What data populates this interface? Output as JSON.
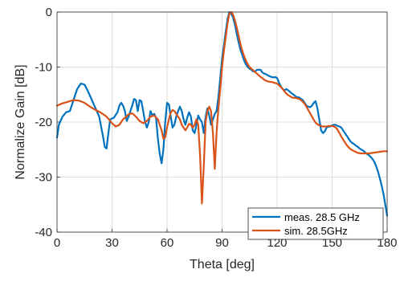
{
  "chart_data": {
    "type": "line",
    "xlabel": "Theta [deg]",
    "ylabel": "Normalize Gain [dB]",
    "xlim": [
      0,
      180
    ],
    "ylim": [
      -40,
      0
    ],
    "xticks": [
      0,
      30,
      60,
      90,
      120,
      150,
      180
    ],
    "yticks": [
      -40,
      -30,
      -20,
      -10,
      0
    ],
    "grid": true,
    "legend_position": "bottom-right",
    "series": [
      {
        "name": "meas. 28.5 GHz",
        "color": "#0072BD",
        "points": [
          [
            0,
            -22.8
          ],
          [
            1,
            -20.5
          ],
          [
            3,
            -19
          ],
          [
            5,
            -18.2
          ],
          [
            7,
            -18
          ],
          [
            9,
            -16
          ],
          [
            11,
            -14
          ],
          [
            13,
            -13
          ],
          [
            15,
            -13.2
          ],
          [
            17,
            -14.5
          ],
          [
            19,
            -16
          ],
          [
            21,
            -17.5
          ],
          [
            23,
            -19
          ],
          [
            25,
            -22.5
          ],
          [
            26,
            -24.5
          ],
          [
            27,
            -24.8
          ],
          [
            28,
            -22
          ],
          [
            29,
            -19.5
          ],
          [
            31,
            -19.2
          ],
          [
            33,
            -18.2
          ],
          [
            34,
            -17
          ],
          [
            35,
            -16.5
          ],
          [
            36,
            -17
          ],
          [
            37,
            -18
          ],
          [
            38,
            -19.8
          ],
          [
            39,
            -19
          ],
          [
            41,
            -17
          ],
          [
            42,
            -15.8
          ],
          [
            43,
            -16
          ],
          [
            44,
            -18
          ],
          [
            45,
            -16
          ],
          [
            46,
            -16.2
          ],
          [
            47,
            -18
          ],
          [
            48,
            -20
          ],
          [
            49,
            -21
          ],
          [
            50,
            -20
          ],
          [
            51,
            -18
          ],
          [
            52,
            -18.8
          ],
          [
            53,
            -18.5
          ],
          [
            54,
            -19.2
          ],
          [
            55,
            -23
          ],
          [
            56,
            -25.8
          ],
          [
            57,
            -27.5
          ],
          [
            58,
            -25
          ],
          [
            59,
            -20
          ],
          [
            60,
            -16.5
          ],
          [
            61,
            -16.8
          ],
          [
            62,
            -19
          ],
          [
            63,
            -21
          ],
          [
            64,
            -20.5
          ],
          [
            65,
            -19
          ],
          [
            66,
            -18
          ],
          [
            67,
            -17.2
          ],
          [
            68,
            -18
          ],
          [
            69,
            -19.5
          ],
          [
            70,
            -20.5
          ],
          [
            71,
            -19.2
          ],
          [
            72,
            -18.2
          ],
          [
            73,
            -19
          ],
          [
            74,
            -21.5
          ],
          [
            75,
            -22
          ],
          [
            76,
            -20.5
          ],
          [
            77,
            -18.8
          ],
          [
            78,
            -19.5
          ],
          [
            79,
            -20
          ],
          [
            80,
            -22
          ],
          [
            81,
            -19
          ],
          [
            82,
            -17.5
          ],
          [
            83,
            -18.8
          ],
          [
            84,
            -20.5
          ],
          [
            85,
            -19.5
          ],
          [
            86,
            -18.5
          ],
          [
            87,
            -18
          ],
          [
            88,
            -15.5
          ],
          [
            89,
            -12
          ],
          [
            90,
            -8.5
          ],
          [
            91,
            -6
          ],
          [
            92,
            -3.5
          ],
          [
            93,
            -1.2
          ],
          [
            94,
            0
          ],
          [
            95,
            -0.3
          ],
          [
            96,
            -1
          ],
          [
            97,
            -2.3
          ],
          [
            98,
            -4
          ],
          [
            99,
            -5.5
          ],
          [
            100,
            -6.8
          ],
          [
            101,
            -7.8
          ],
          [
            102,
            -8.8
          ],
          [
            103,
            -9.5
          ],
          [
            104,
            -10
          ],
          [
            105,
            -10.3
          ],
          [
            106,
            -10.5
          ],
          [
            107,
            -10.8
          ],
          [
            108,
            -10.8
          ],
          [
            109,
            -10.5
          ],
          [
            110,
            -10.5
          ],
          [
            111,
            -10.5
          ],
          [
            112,
            -11
          ],
          [
            113,
            -11.2
          ],
          [
            114,
            -11.3
          ],
          [
            115,
            -11.5
          ],
          [
            116,
            -11.7
          ],
          [
            117,
            -11.8
          ],
          [
            118,
            -11.9
          ],
          [
            119,
            -11.8
          ],
          [
            120,
            -12
          ],
          [
            121,
            -12.8
          ],
          [
            122,
            -13.5
          ],
          [
            123,
            -14
          ],
          [
            124,
            -14.2
          ],
          [
            125,
            -14
          ],
          [
            126,
            -14.2
          ],
          [
            127,
            -14.5
          ],
          [
            128,
            -14.8
          ],
          [
            129,
            -15
          ],
          [
            130,
            -15.3
          ],
          [
            131,
            -15.5
          ],
          [
            132,
            -15.5
          ],
          [
            133,
            -15.8
          ],
          [
            134,
            -16
          ],
          [
            135,
            -16.5
          ],
          [
            136,
            -17
          ],
          [
            137,
            -17.2
          ],
          [
            138,
            -17.3
          ],
          [
            139,
            -17
          ],
          [
            140,
            -16.5
          ],
          [
            141,
            -16.2
          ],
          [
            142,
            -17.5
          ],
          [
            143,
            -19.5
          ],
          [
            144,
            -21.5
          ],
          [
            145,
            -22
          ],
          [
            146,
            -21.7
          ],
          [
            147,
            -21
          ],
          [
            148,
            -20.8
          ],
          [
            149,
            -20.8
          ],
          [
            150,
            -20.6
          ],
          [
            151,
            -20.5
          ],
          [
            152,
            -20.5
          ],
          [
            153,
            -20.7
          ],
          [
            154,
            -20.8
          ],
          [
            155,
            -21
          ],
          [
            156,
            -21.5
          ],
          [
            157,
            -22
          ],
          [
            158,
            -22.5
          ],
          [
            159,
            -23
          ],
          [
            160,
            -23.5
          ],
          [
            161,
            -23.8
          ],
          [
            162,
            -24
          ],
          [
            163,
            -24.3
          ],
          [
            164,
            -24.5
          ],
          [
            165,
            -24.8
          ],
          [
            166,
            -25
          ],
          [
            167,
            -25.2
          ],
          [
            168,
            -25.5
          ],
          [
            169,
            -25.8
          ],
          [
            170,
            -26
          ],
          [
            171,
            -26.3
          ],
          [
            172,
            -26.7
          ],
          [
            173,
            -27.2
          ],
          [
            174,
            -28
          ],
          [
            175,
            -29
          ],
          [
            176,
            -30.2
          ],
          [
            177,
            -31.5
          ],
          [
            178,
            -33
          ],
          [
            179,
            -35
          ],
          [
            180,
            -37
          ]
        ]
      },
      {
        "name": "sim. 28.5GHz",
        "color": "#D95319",
        "points": [
          [
            0,
            -17
          ],
          [
            3,
            -16.6
          ],
          [
            6,
            -16.3
          ],
          [
            9,
            -16
          ],
          [
            12,
            -16.1
          ],
          [
            15,
            -16.5
          ],
          [
            18,
            -17.2
          ],
          [
            21,
            -17.8
          ],
          [
            24,
            -18.3
          ],
          [
            27,
            -19
          ],
          [
            30,
            -20.2
          ],
          [
            32,
            -20.8
          ],
          [
            34,
            -20.5
          ],
          [
            36,
            -19.5
          ],
          [
            39,
            -18.6
          ],
          [
            41,
            -18.4
          ],
          [
            43,
            -19
          ],
          [
            45,
            -19.8
          ],
          [
            47,
            -20.2
          ],
          [
            49,
            -19.8
          ],
          [
            51,
            -19
          ],
          [
            53,
            -18.8
          ],
          [
            55,
            -19.5
          ],
          [
            57,
            -21.5
          ],
          [
            58,
            -23
          ],
          [
            59,
            -22.8
          ],
          [
            60,
            -21
          ],
          [
            61,
            -19.5
          ],
          [
            62,
            -18.3
          ],
          [
            63,
            -17.8
          ],
          [
            64,
            -18
          ],
          [
            65,
            -18.5
          ],
          [
            66,
            -19
          ],
          [
            67,
            -19.5
          ],
          [
            68,
            -20.5
          ],
          [
            70,
            -21.5
          ],
          [
            71,
            -21
          ],
          [
            72,
            -20.3
          ],
          [
            73,
            -20.5
          ],
          [
            74,
            -21
          ],
          [
            75,
            -20.5
          ],
          [
            76,
            -19.5
          ],
          [
            77,
            -20.5
          ],
          [
            78,
            -26
          ],
          [
            79,
            -34.8
          ],
          [
            80,
            -28
          ],
          [
            81,
            -20
          ],
          [
            82,
            -18
          ],
          [
            83,
            -17.2
          ],
          [
            84,
            -18
          ],
          [
            85,
            -22
          ],
          [
            86,
            -28.5
          ],
          [
            87,
            -22
          ],
          [
            88,
            -17.5
          ],
          [
            89,
            -14
          ],
          [
            90,
            -10
          ],
          [
            91,
            -7
          ],
          [
            92,
            -4.5
          ],
          [
            93,
            -2
          ],
          [
            94,
            -0.3
          ],
          [
            95,
            0
          ],
          [
            96,
            -0.5
          ],
          [
            97,
            -1.5
          ],
          [
            98,
            -2.8
          ],
          [
            99,
            -4.3
          ],
          [
            100,
            -5.8
          ],
          [
            101,
            -7
          ],
          [
            102,
            -8
          ],
          [
            103,
            -8.8
          ],
          [
            104,
            -9.5
          ],
          [
            105,
            -10
          ],
          [
            106,
            -10.3
          ],
          [
            107,
            -10.6
          ],
          [
            108,
            -10.9
          ],
          [
            109,
            -11.2
          ],
          [
            110,
            -11.5
          ],
          [
            111,
            -11.8
          ],
          [
            112,
            -12
          ],
          [
            113,
            -12.3
          ],
          [
            114,
            -12.5
          ],
          [
            115,
            -12.6
          ],
          [
            116,
            -12.7
          ],
          [
            117,
            -12.7
          ],
          [
            118,
            -12.8
          ],
          [
            119,
            -12.9
          ],
          [
            120,
            -13
          ],
          [
            121,
            -13.3
          ],
          [
            122,
            -13.6
          ],
          [
            123,
            -14
          ],
          [
            124,
            -14.4
          ],
          [
            125,
            -14.8
          ],
          [
            126,
            -15.1
          ],
          [
            127,
            -15.3
          ],
          [
            128,
            -15.5
          ],
          [
            129,
            -15.6
          ],
          [
            130,
            -15.6
          ],
          [
            131,
            -15.7
          ],
          [
            132,
            -15.8
          ],
          [
            133,
            -16
          ],
          [
            134,
            -16.3
          ],
          [
            135,
            -16.7
          ],
          [
            136,
            -17.2
          ],
          [
            137,
            -17.8
          ],
          [
            138,
            -18.4
          ],
          [
            139,
            -19
          ],
          [
            140,
            -19.6
          ],
          [
            141,
            -20.1
          ],
          [
            142,
            -20.4
          ],
          [
            143,
            -20.6
          ],
          [
            144,
            -20.7
          ],
          [
            145,
            -20.8
          ],
          [
            146,
            -20.8
          ],
          [
            147,
            -20.8
          ],
          [
            148,
            -20.7
          ],
          [
            149,
            -20.7
          ],
          [
            150,
            -20.7
          ],
          [
            151,
            -20.8
          ],
          [
            152,
            -21
          ],
          [
            153,
            -21.4
          ],
          [
            154,
            -22
          ],
          [
            155,
            -22.6
          ],
          [
            156,
            -23.2
          ],
          [
            157,
            -23.7
          ],
          [
            158,
            -24.2
          ],
          [
            159,
            -24.6
          ],
          [
            160,
            -24.9
          ],
          [
            162,
            -25.3
          ],
          [
            164,
            -25.6
          ],
          [
            166,
            -25.7
          ],
          [
            168,
            -25.7
          ],
          [
            170,
            -25.7
          ],
          [
            172,
            -25.6
          ],
          [
            174,
            -25.5
          ],
          [
            176,
            -25.4
          ],
          [
            178,
            -25.3
          ],
          [
            180,
            -25.3
          ]
        ]
      }
    ]
  }
}
